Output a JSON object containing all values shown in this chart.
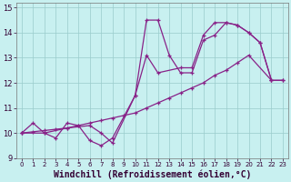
{
  "xlabel": "Windchill (Refroidissement éolien,°C)",
  "background_color": "#c8f0f0",
  "line_color": "#882288",
  "grid_color": "#99cccc",
  "xlim": [
    -0.5,
    23.5
  ],
  "ylim": [
    9,
    15.2
  ],
  "xticks": [
    0,
    1,
    2,
    3,
    4,
    5,
    6,
    7,
    8,
    9,
    10,
    11,
    12,
    13,
    14,
    15,
    16,
    17,
    18,
    19,
    20,
    21,
    22,
    23
  ],
  "yticks": [
    9,
    10,
    11,
    12,
    13,
    14,
    15
  ],
  "line1_x": [
    0,
    1,
    2,
    3,
    4,
    5,
    6,
    7,
    8,
    10,
    11,
    12,
    13,
    14,
    15,
    16,
    17,
    18,
    19,
    20,
    21,
    22
  ],
  "line1_y": [
    10.0,
    10.4,
    10.0,
    9.8,
    10.4,
    10.3,
    9.7,
    9.5,
    9.8,
    11.5,
    14.5,
    14.5,
    13.1,
    12.4,
    12.4,
    13.7,
    13.9,
    14.4,
    14.3,
    14.0,
    13.6,
    12.1
  ],
  "line2_x": [
    0,
    1,
    2,
    3,
    4,
    5,
    6,
    7,
    8,
    9,
    10,
    11,
    12,
    13,
    14,
    15,
    16,
    17,
    18,
    19,
    20,
    22,
    23
  ],
  "line2_y": [
    10.0,
    10.05,
    10.1,
    10.15,
    10.2,
    10.3,
    10.4,
    10.5,
    10.6,
    10.7,
    10.8,
    11.0,
    11.2,
    11.4,
    11.6,
    11.8,
    12.0,
    12.3,
    12.5,
    12.8,
    13.1,
    12.1,
    12.1
  ],
  "line3_x": [
    0,
    2,
    4,
    6,
    7,
    8,
    10,
    11,
    12,
    14,
    15,
    16,
    17,
    18,
    19,
    20,
    21,
    22,
    23
  ],
  "line3_y": [
    10.0,
    10.0,
    10.2,
    10.3,
    10.0,
    9.6,
    11.5,
    13.1,
    12.4,
    12.6,
    12.6,
    13.9,
    14.4,
    14.4,
    14.3,
    14.0,
    13.6,
    12.1,
    12.1
  ],
  "font_size": 7,
  "tick_font_size": 6
}
